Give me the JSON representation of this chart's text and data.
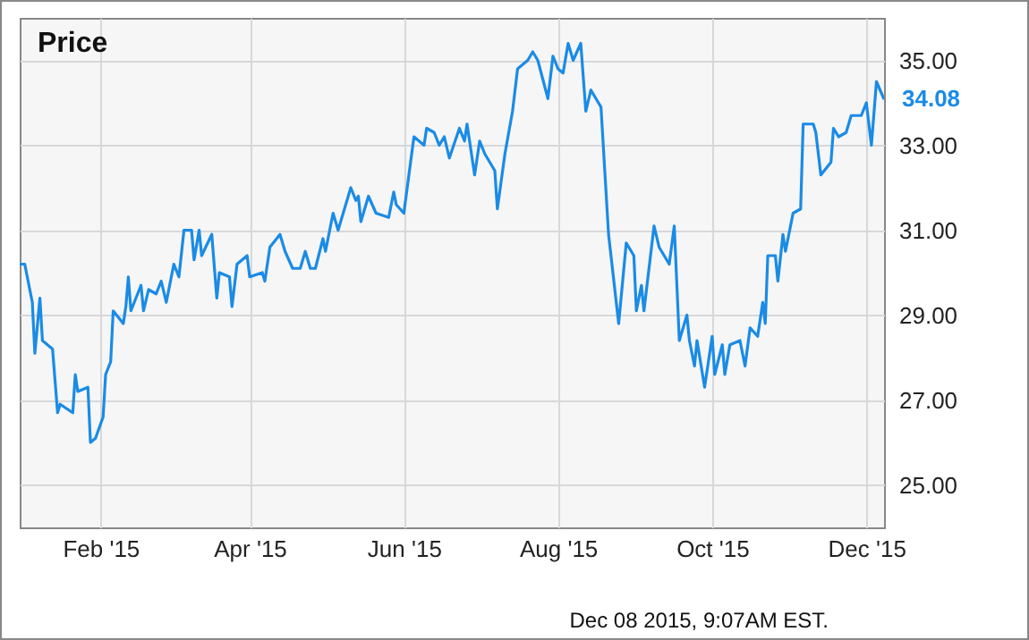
{
  "chart_data": {
    "type": "line",
    "title": "Price",
    "x": [
      "2014-12-31",
      "2015-01-02",
      "2015-01-05",
      "2015-01-06",
      "2015-01-08",
      "2015-01-09",
      "2015-01-13",
      "2015-01-15",
      "2015-01-16",
      "2015-01-21",
      "2015-01-22",
      "2015-01-23",
      "2015-01-27",
      "2015-01-28",
      "2015-01-30",
      "2015-02-02",
      "2015-02-03",
      "2015-02-05",
      "2015-02-06",
      "2015-02-10",
      "2015-02-11",
      "2015-02-12",
      "2015-02-13",
      "2015-02-17",
      "2015-02-18",
      "2015-02-20",
      "2015-02-23",
      "2015-02-25",
      "2015-02-27",
      "2015-03-02",
      "2015-03-04",
      "2015-03-06",
      "2015-03-09",
      "2015-03-10",
      "2015-03-12",
      "2015-03-13",
      "2015-03-17",
      "2015-03-19",
      "2015-03-20",
      "2015-03-24",
      "2015-03-25",
      "2015-03-27",
      "2015-03-31",
      "2015-04-01",
      "2015-04-06",
      "2015-04-07",
      "2015-04-09",
      "2015-04-13",
      "2015-04-15",
      "2015-04-18",
      "2015-04-21",
      "2015-04-23",
      "2015-04-25",
      "2015-04-27",
      "2015-04-30",
      "2015-05-01",
      "2015-05-04",
      "2015-05-06",
      "2015-05-11",
      "2015-05-13",
      "2015-05-14",
      "2015-05-15",
      "2015-05-18",
      "2015-05-21",
      "2015-05-26",
      "2015-05-28",
      "2015-05-29",
      "2015-06-01",
      "2015-06-03",
      "2015-06-05",
      "2015-06-09",
      "2015-06-10",
      "2015-06-13",
      "2015-06-15",
      "2015-06-17",
      "2015-06-19",
      "2015-06-23",
      "2015-06-25",
      "2015-06-26",
      "2015-06-29",
      "2015-07-01",
      "2015-07-03",
      "2015-07-07",
      "2015-07-08",
      "2015-07-11",
      "2015-07-14",
      "2015-07-16",
      "2015-07-20",
      "2015-07-22",
      "2015-07-24",
      "2015-07-28",
      "2015-07-30",
      "2015-08-01",
      "2015-08-03",
      "2015-08-05",
      "2015-08-07",
      "2015-08-10",
      "2015-08-12",
      "2015-08-14",
      "2015-08-18",
      "2015-08-21",
      "2015-08-25",
      "2015-08-28",
      "2015-08-31",
      "2015-09-01",
      "2015-09-03",
      "2015-09-04",
      "2015-09-08",
      "2015-09-10",
      "2015-09-14",
      "2015-09-16",
      "2015-09-18",
      "2015-09-21",
      "2015-09-22",
      "2015-09-24",
      "2015-09-25",
      "2015-09-28",
      "2015-10-01",
      "2015-10-02",
      "2015-10-05",
      "2015-10-06",
      "2015-10-08",
      "2015-10-12",
      "2015-10-14",
      "2015-10-16",
      "2015-10-19",
      "2015-10-21",
      "2015-10-22",
      "2015-10-23",
      "2015-10-26",
      "2015-10-27",
      "2015-10-29",
      "2015-10-30",
      "2015-11-02",
      "2015-11-05",
      "2015-11-06",
      "2015-11-10",
      "2015-11-11",
      "2015-11-13",
      "2015-11-17",
      "2015-11-18",
      "2015-11-20",
      "2015-11-23",
      "2015-11-25",
      "2015-11-29",
      "2015-12-01",
      "2015-12-03",
      "2015-12-05",
      "2015-12-08"
    ],
    "series": [
      {
        "color": "#1a8be6",
        "values": [
          30.2,
          30.2,
          29.3,
          28.1,
          29.4,
          28.4,
          28.2,
          26.7,
          26.9,
          26.7,
          27.6,
          27.2,
          27.3,
          26.0,
          26.1,
          26.6,
          27.6,
          27.9,
          29.1,
          28.8,
          29.2,
          29.9,
          29.1,
          29.7,
          29.1,
          29.6,
          29.5,
          29.8,
          29.3,
          30.2,
          29.9,
          31.0,
          31.0,
          30.3,
          31.0,
          30.4,
          30.9,
          29.4,
          30.0,
          29.9,
          29.2,
          30.2,
          30.4,
          29.9,
          30.0,
          29.8,
          30.6,
          30.9,
          30.5,
          30.1,
          30.1,
          30.5,
          30.1,
          30.1,
          30.8,
          30.5,
          31.4,
          31.0,
          32.0,
          31.7,
          31.8,
          31.2,
          31.8,
          31.4,
          31.3,
          31.9,
          31.6,
          31.4,
          32.3,
          33.2,
          33.0,
          33.4,
          33.3,
          33.0,
          33.2,
          32.7,
          33.4,
          33.1,
          33.5,
          32.3,
          33.1,
          32.8,
          32.4,
          31.5,
          32.8,
          33.8,
          34.8,
          35.0,
          35.2,
          35.0,
          34.1,
          35.1,
          34.8,
          34.7,
          35.4,
          35.0,
          35.4,
          33.8,
          34.3,
          33.9,
          30.9,
          28.8,
          30.7,
          30.4,
          29.1,
          29.7,
          29.1,
          31.1,
          30.6,
          30.2,
          31.1,
          28.4,
          29.0,
          28.4,
          27.8,
          28.4,
          27.3,
          28.5,
          27.6,
          28.3,
          27.6,
          28.3,
          28.4,
          27.8,
          28.7,
          28.5,
          29.3,
          28.8,
          30.4,
          30.4,
          29.8,
          30.9,
          30.5,
          31.4,
          31.5,
          33.5,
          33.5,
          33.3,
          32.3,
          32.6,
          33.4,
          33.2,
          33.3,
          33.7,
          33.7,
          34.0,
          33.0,
          34.5,
          34.08
        ]
      }
    ],
    "xlim": [
      "2014-12-31",
      "2015-12-08"
    ],
    "xticks": [
      {
        "value": "2015-02-01",
        "label": "Feb '15"
      },
      {
        "value": "2015-04-01",
        "label": "Apr '15"
      },
      {
        "value": "2015-06-01",
        "label": "Jun '15"
      },
      {
        "value": "2015-08-01",
        "label": "Aug '15"
      },
      {
        "value": "2015-10-01",
        "label": "Oct '15"
      },
      {
        "value": "2015-12-01",
        "label": "Dec '15"
      }
    ],
    "ylim": [
      24,
      36
    ],
    "yticks": [
      {
        "value": 25,
        "label": "25.00"
      },
      {
        "value": 27,
        "label": "27.00"
      },
      {
        "value": 29,
        "label": "29.00"
      },
      {
        "value": 31,
        "label": "31.00"
      },
      {
        "value": 33,
        "label": "33.00"
      },
      {
        "value": 35,
        "label": "35.00"
      }
    ],
    "grid": true,
    "annotations": [
      {
        "text": "34.08",
        "x": "2015-12-08",
        "y": 34.08
      },
      "Dec 08 2015, 9:07AM EST."
    ]
  }
}
